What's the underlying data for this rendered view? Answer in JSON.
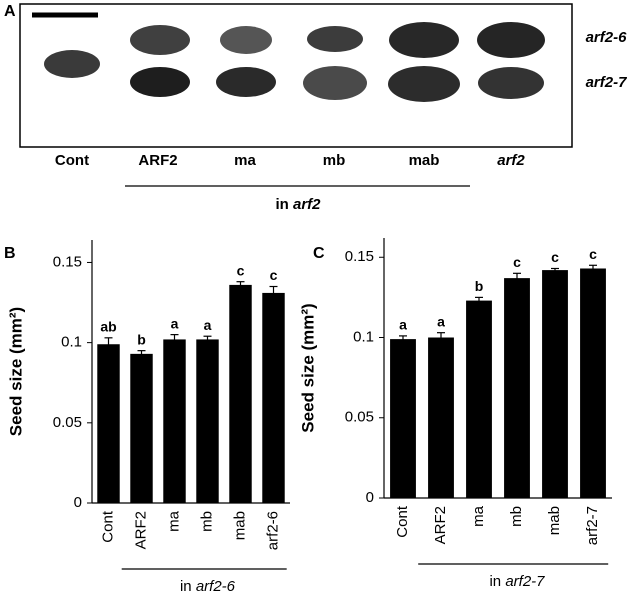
{
  "panel_a": {
    "label": "A",
    "row_labels": [
      "arf2-6",
      "arf2-7"
    ],
    "columns": [
      "Cont",
      "ARF2",
      "ma",
      "mb",
      "mab",
      "arf2"
    ],
    "group_prefix": "in",
    "group_genotype": "arf2"
  },
  "chart_data": [
    {
      "type": "bar",
      "panel_label": "B",
      "y_label": "Seed size (mm²)",
      "categories": [
        "Cont",
        "ARF2",
        "ma",
        "mb",
        "mab",
        "arf2-6"
      ],
      "values": [
        0.099,
        0.093,
        0.102,
        0.102,
        0.136,
        0.131
      ],
      "errors": [
        0.004,
        0.002,
        0.003,
        0.002,
        0.002,
        0.004
      ],
      "significance": [
        "ab",
        "b",
        "a",
        "a",
        "c",
        "c"
      ],
      "color": "#000000",
      "ylim": [
        0,
        0.164
      ],
      "yticks": [
        0,
        0.05,
        0.1,
        0.15
      ],
      "group_prefix": "in",
      "group_genotype": "arf2-6"
    },
    {
      "type": "bar",
      "panel_label": "C",
      "y_label": "Seed size (mm²)",
      "categories": [
        "Cont",
        "ARF2",
        "ma",
        "mb",
        "mab",
        "arf2-7"
      ],
      "values": [
        0.099,
        0.1,
        0.123,
        0.137,
        0.142,
        0.143
      ],
      "errors": [
        0.002,
        0.003,
        0.002,
        0.003,
        0.001,
        0.002
      ],
      "significance": [
        "a",
        "a",
        "b",
        "c",
        "c",
        "c"
      ],
      "color": "#000000",
      "ylim": [
        0,
        0.162
      ],
      "yticks": [
        0,
        0.05,
        0.1,
        0.15
      ],
      "group_prefix": "in",
      "group_genotype": "arf2-7"
    }
  ]
}
